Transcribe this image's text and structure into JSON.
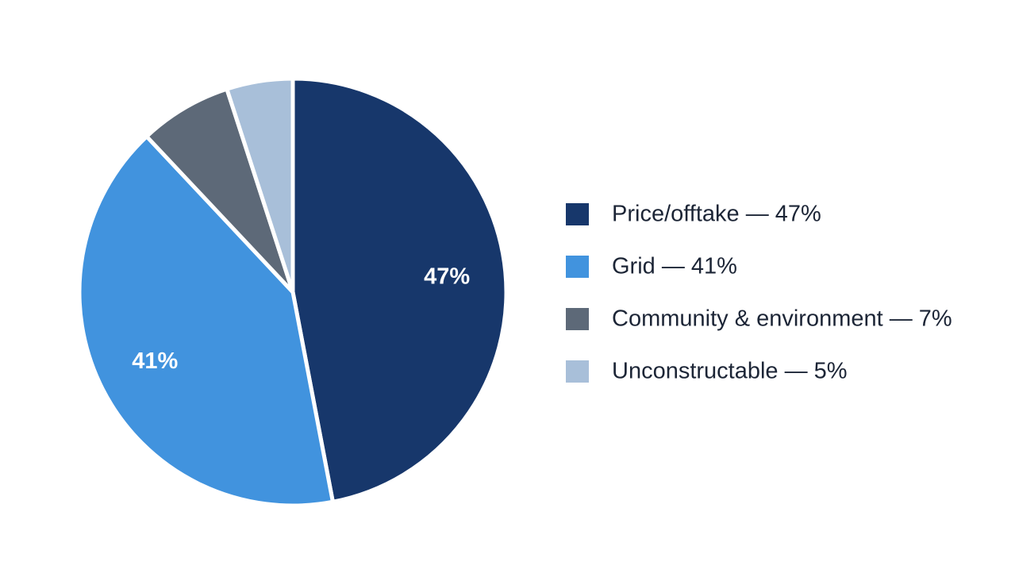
{
  "chart_data": {
    "type": "pie",
    "categories": [
      "Price/offtake — 47%",
      "Grid — 41%",
      "Community & environment — 7%",
      "Unconstructable — 5%"
    ],
    "values": [
      47,
      41,
      7,
      5
    ],
    "value_labels": [
      "47%",
      "41%",
      null,
      null
    ],
    "colors": [
      "#17376b",
      "#4193de",
      "#5d6978",
      "#a8bfd9"
    ],
    "legend": "right"
  }
}
